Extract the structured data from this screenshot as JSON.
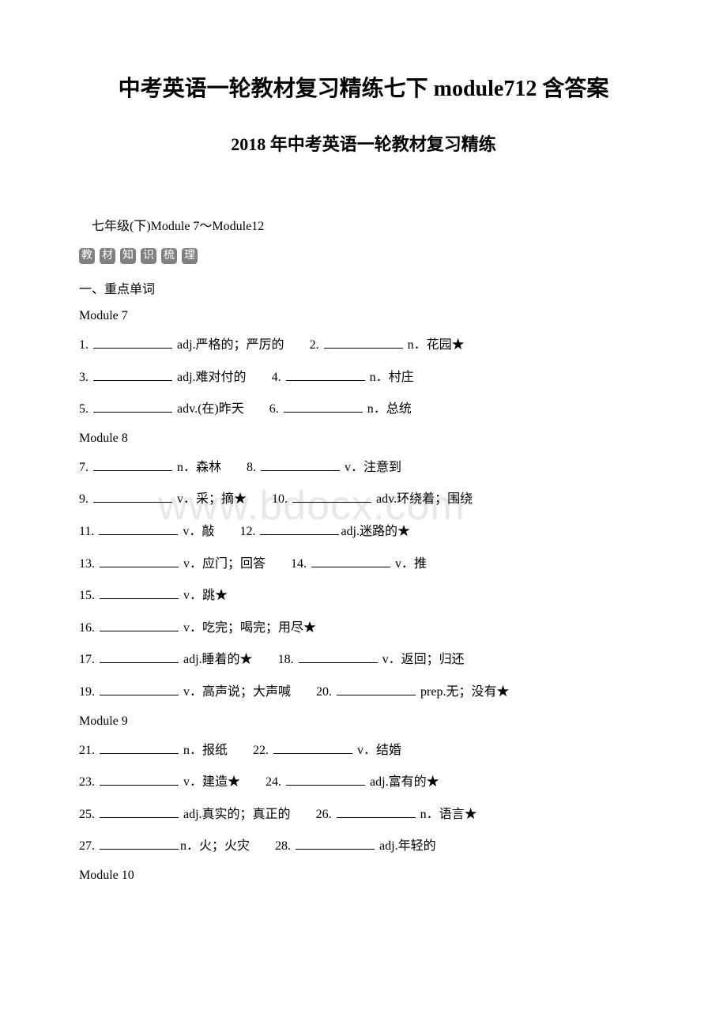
{
  "title_main": "中考英语一轮教材复习精练七下 module712 含答案",
  "title_sub": "2018 年中考英语一轮教材复习精练",
  "grade_line": "七年级(下)Module 7～Module12",
  "badge_chars": [
    "教",
    "材",
    "知",
    "识",
    "梳",
    "理"
  ],
  "section_title": "一、重点单词",
  "watermark": "www.bdocx.com",
  "modules": [
    {
      "label": "Module 7",
      "rows": [
        [
          {
            "num": "1.",
            "text": " adj.严格的；严厉的"
          },
          {
            "num": "2.",
            "text": " n．花园★"
          }
        ],
        [
          {
            "num": "3.",
            "text": " adj.难对付的"
          },
          {
            "num": "4.",
            "text": " n．村庄"
          }
        ],
        [
          {
            "num": "5.",
            "text": " adv.(在)昨天"
          },
          {
            "num": "6.",
            "text": " n．总统"
          }
        ]
      ]
    },
    {
      "label": "Module 8",
      "rows": [
        [
          {
            "num": "7.",
            "text": " n．森林"
          },
          {
            "num": "8.",
            "text": " v．注意到"
          }
        ],
        [
          {
            "num": "9.",
            "text": " v．采；摘★"
          },
          {
            "num": "10.",
            "text": " adv.环绕着；围绕"
          }
        ],
        [
          {
            "num": "11.",
            "text": " v．敲"
          },
          {
            "num": "12.",
            "text": "adj.迷路的★"
          }
        ],
        [
          {
            "num": "13.",
            "text": " v．应门；回答"
          },
          {
            "num": "14.",
            "text": " v．推"
          }
        ],
        [
          {
            "num": "15.",
            "text": " v．跳★"
          }
        ],
        [
          {
            "num": "16.",
            "text": " v．吃完；喝完；用尽★"
          }
        ],
        [
          {
            "num": "17.",
            "text": " adj.睡着的★"
          },
          {
            "num": "18.",
            "text": " v．返回；归还"
          }
        ],
        [
          {
            "num": "19.",
            "text": " v．高声说；大声喊"
          },
          {
            "num": "20.",
            "text": " prep.无；没有★"
          }
        ]
      ]
    },
    {
      "label": "Module 9",
      "rows": [
        [
          {
            "num": "21.",
            "text": " n．报纸"
          },
          {
            "num": "22.",
            "text": " v．结婚"
          }
        ],
        [
          {
            "num": "23.",
            "text": " v．建造★"
          },
          {
            "num": "24.",
            "text": " adj.富有的★"
          }
        ],
        [
          {
            "num": "25.",
            "text": " adj.真实的；真正的"
          },
          {
            "num": "26.",
            "text": " n．语言★"
          }
        ],
        [
          {
            "num": "27.",
            "text": "n．火；火灾"
          },
          {
            "num": "28.",
            "text": " adj.年轻的"
          }
        ]
      ]
    },
    {
      "label": "Module 10",
      "rows": []
    }
  ],
  "gap_text": "　　"
}
